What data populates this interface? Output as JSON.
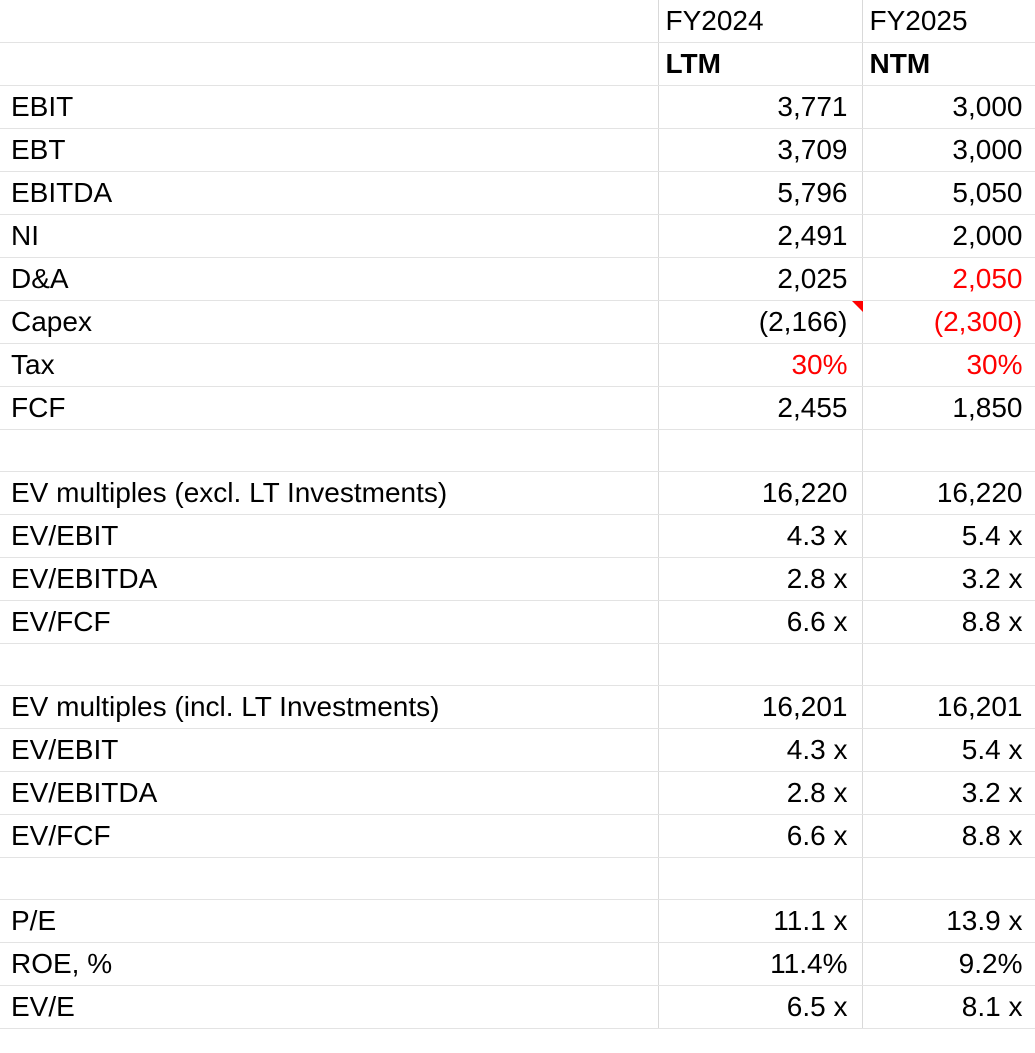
{
  "header": {
    "col1_year": "FY2024",
    "col2_year": "FY2025",
    "col1_period": "LTM",
    "col2_period": "NTM"
  },
  "rows": [
    {
      "label": "EBIT",
      "ltm": "3,771",
      "ntm": "3,000"
    },
    {
      "label": "EBT",
      "ltm": "3,709",
      "ntm": "3,000"
    },
    {
      "label": "EBITDA",
      "ltm": "5,796",
      "ntm": "5,050"
    },
    {
      "label": "NI",
      "ltm": "2,491",
      "ntm": "2,000"
    },
    {
      "label": "D&A",
      "ltm": "2,025",
      "ntm": "2,050",
      "ntm_red": true
    },
    {
      "label": "Capex",
      "ltm": "(2,166)",
      "ntm": "(2,300)",
      "ntm_red": true,
      "ltm_comment": true
    },
    {
      "label": "Tax",
      "ltm": "30%",
      "ntm": "30%",
      "ltm_red": true,
      "ntm_red": true
    },
    {
      "label": "FCF",
      "ltm": "2,455",
      "ntm": "1,850"
    },
    {
      "label": "",
      "ltm": "",
      "ntm": ""
    },
    {
      "label": "EV multiples (excl. LT Investments)",
      "ltm": "16,220",
      "ntm": "16,220"
    },
    {
      "label": "EV/EBIT",
      "ltm": "4.3 x",
      "ntm": "5.4 x"
    },
    {
      "label": "EV/EBITDA",
      "ltm": "2.8 x",
      "ntm": "3.2 x"
    },
    {
      "label": "EV/FCF",
      "ltm": "6.6 x",
      "ntm": "8.8 x"
    },
    {
      "label": "",
      "ltm": "",
      "ntm": ""
    },
    {
      "label": "EV multiples (incl. LT Investments)",
      "ltm": "16,201",
      "ntm": "16,201"
    },
    {
      "label": "EV/EBIT",
      "ltm": "4.3 x",
      "ntm": "5.4 x"
    },
    {
      "label": "EV/EBITDA",
      "ltm": "2.8 x",
      "ntm": "3.2 x"
    },
    {
      "label": "EV/FCF",
      "ltm": "6.6 x",
      "ntm": "8.8 x"
    },
    {
      "label": "",
      "ltm": "",
      "ntm": ""
    },
    {
      "label": "P/E",
      "ltm": "11.1 x",
      "ntm": "13.9 x"
    },
    {
      "label": "ROE, %",
      "ltm": "11.4%",
      "ntm": "9.2%"
    },
    {
      "label": "EV/E",
      "ltm": "6.5 x",
      "ntm": "8.1 x"
    }
  ],
  "colors": {
    "accent_red": "#ff0000",
    "gridline": "#d9d9d9"
  }
}
